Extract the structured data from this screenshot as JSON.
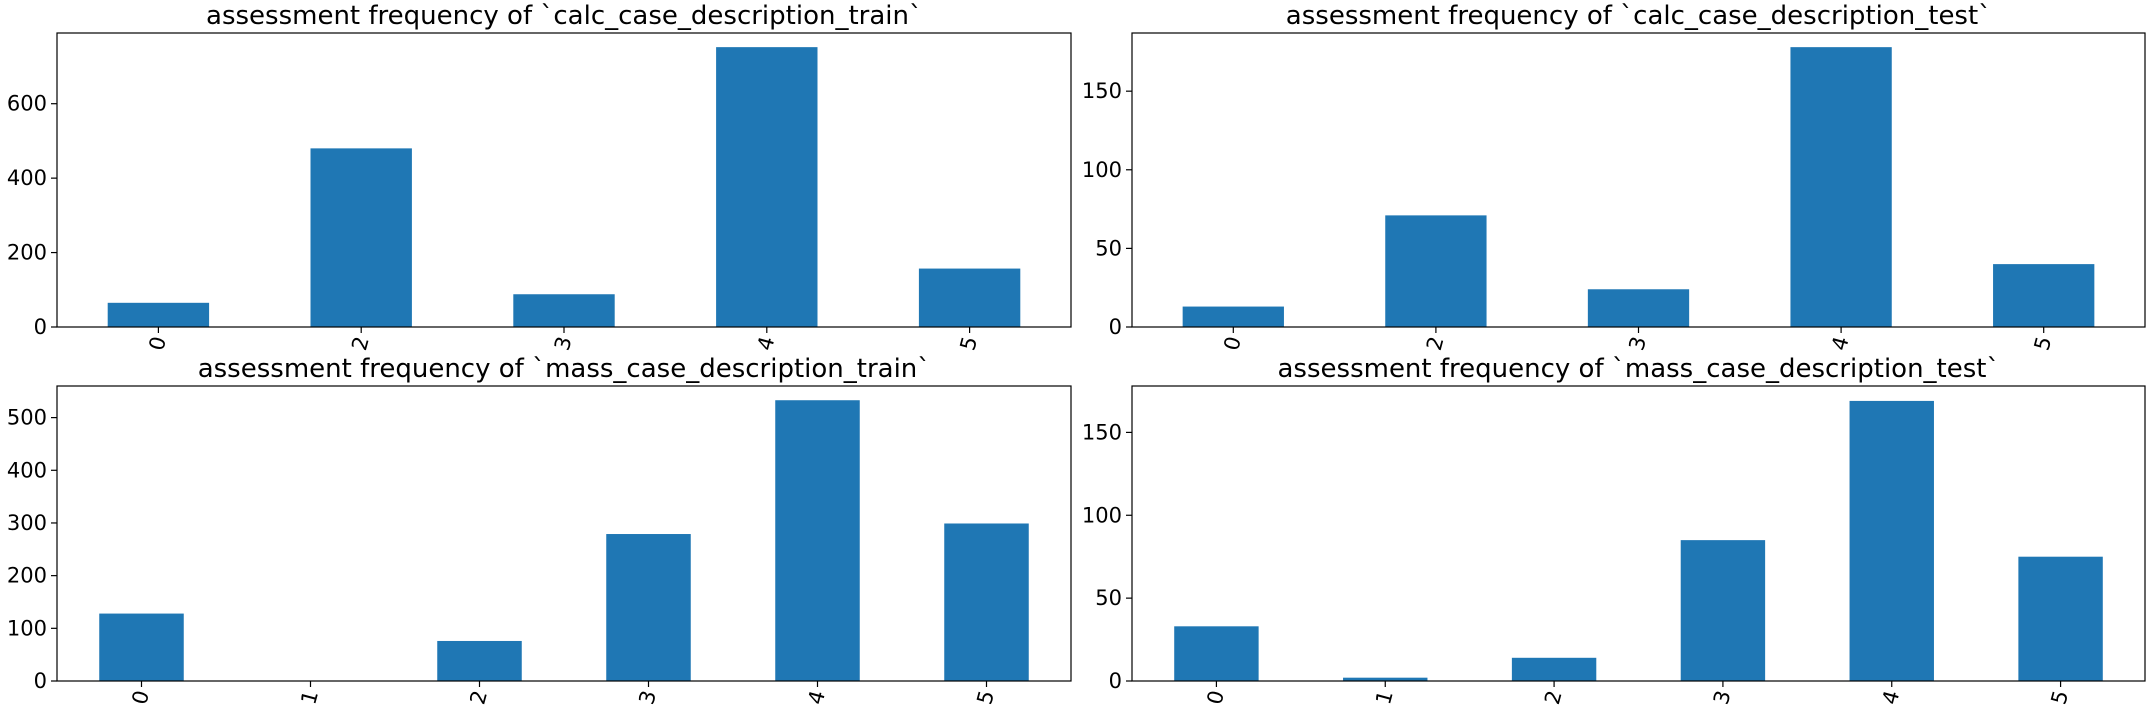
{
  "chart_data": [
    {
      "type": "bar",
      "title": "assessment frequency of `calc_case_description_train`",
      "categories": [
        "0",
        "2",
        "3",
        "4",
        "5"
      ],
      "values": [
        65,
        480,
        88,
        752,
        157
      ],
      "ylim": [
        0,
        790
      ],
      "yticks": [
        0,
        200,
        400,
        600
      ],
      "color": "#1f77b4",
      "grid": false,
      "xtick_rotation": -75
    },
    {
      "type": "bar",
      "title": "assessment frequency of `calc_case_description_test`",
      "categories": [
        "0",
        "2",
        "3",
        "4",
        "5"
      ],
      "values": [
        13,
        71,
        24,
        178,
        40
      ],
      "ylim": [
        0,
        187
      ],
      "yticks": [
        0,
        50,
        100,
        150
      ],
      "color": "#1f77b4",
      "grid": false,
      "xtick_rotation": -75
    },
    {
      "type": "bar",
      "title": "assessment frequency of `mass_case_description_train`",
      "categories": [
        "0",
        "1",
        "2",
        "3",
        "4",
        "5"
      ],
      "values": [
        128,
        0,
        76,
        279,
        533,
        299
      ],
      "ylim": [
        0,
        560
      ],
      "yticks": [
        0,
        100,
        200,
        300,
        400,
        500
      ],
      "color": "#1f77b4",
      "grid": false,
      "xtick_rotation": -75
    },
    {
      "type": "bar",
      "title": "assessment frequency of `mass_case_description_test`",
      "categories": [
        "0",
        "1",
        "2",
        "3",
        "4",
        "5"
      ],
      "values": [
        33,
        2,
        14,
        85,
        169,
        75
      ],
      "ylim": [
        0,
        178
      ],
      "yticks": [
        0,
        50,
        100,
        150
      ],
      "color": "#1f77b4",
      "grid": false,
      "xtick_rotation": -75
    }
  ]
}
